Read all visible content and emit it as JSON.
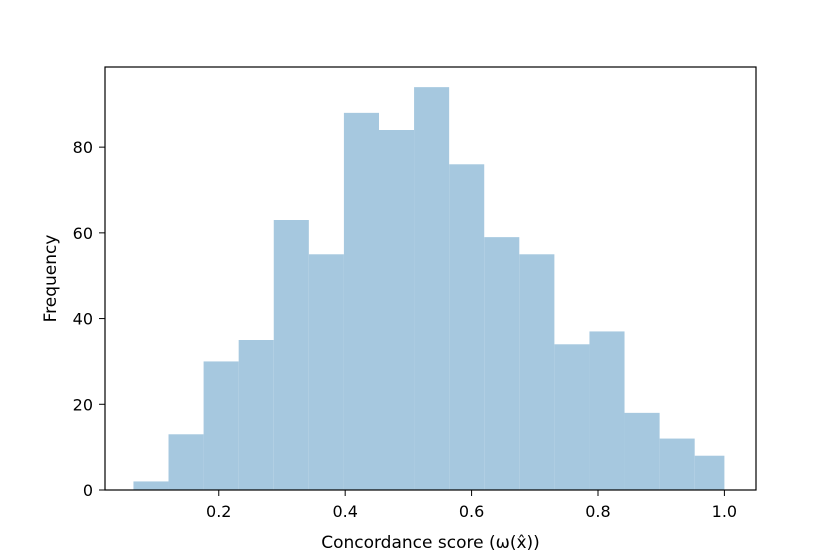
{
  "chart_data": {
    "type": "bar",
    "subtype": "histogram",
    "xlabel": "Concordance score (ω(x̂))",
    "ylabel": "Frequency",
    "xlim": [
      0.02,
      1.05
    ],
    "ylim": [
      0,
      98.7
    ],
    "xticks": [
      0.2,
      0.4,
      0.6,
      0.8,
      1.0
    ],
    "xtick_labels": [
      "0.2",
      "0.4",
      "0.6",
      "0.8",
      "1.0"
    ],
    "yticks": [
      0,
      20,
      40,
      60,
      80
    ],
    "ytick_labels": [
      "0",
      "20",
      "40",
      "60",
      "80"
    ],
    "bin_edges": [
      0.065,
      0.1205,
      0.176,
      0.2315,
      0.287,
      0.3425,
      0.398,
      0.4535,
      0.509,
      0.5645,
      0.62,
      0.6755,
      0.731,
      0.7865,
      0.842,
      0.8975,
      0.953,
      1.0
    ],
    "values": [
      2,
      13,
      30,
      35,
      63,
      55,
      88,
      84,
      94,
      76,
      59,
      55,
      34,
      37,
      18,
      12,
      8
    ],
    "bar_color": "#a6c8df",
    "grid": false,
    "legend": "none"
  }
}
